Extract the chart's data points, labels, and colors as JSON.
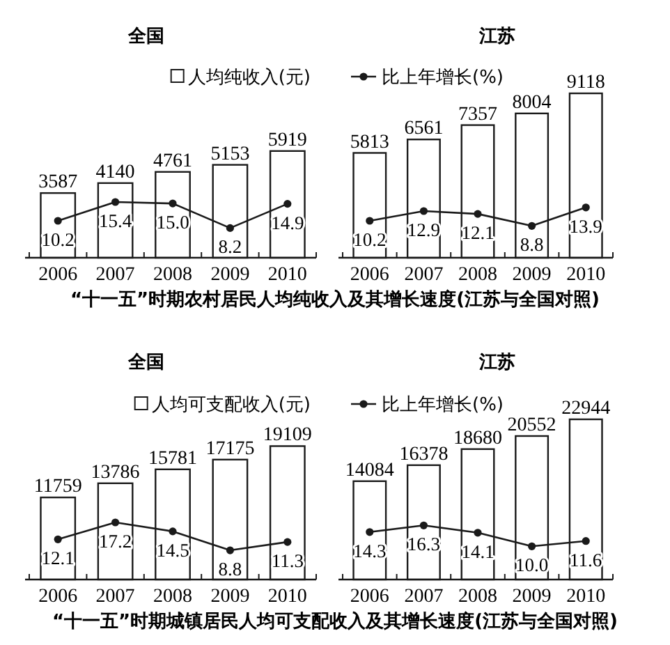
{
  "chart_data": [
    {
      "type": "bar",
      "title": "全国",
      "categories": [
        "2006",
        "2007",
        "2008",
        "2009",
        "2010"
      ],
      "series": [
        {
          "name": "人均纯收入(元)",
          "color": "#ffffff",
          "values": [
            3587,
            4140,
            4761,
            5153,
            5919
          ]
        },
        {
          "type": "line",
          "axis": "y2",
          "color": "#1a1a1a",
          "values": [
            10.2,
            15.4,
            15.0,
            8.2,
            14.9
          ],
          "value_labels": [
            "10.2",
            "15.4",
            "15.0",
            "8.2",
            "14.9"
          ]
        }
      ],
      "data_labels": true,
      "marker": "circle",
      "legend": "top right",
      "tick_labels": "x",
      "annotations": [
        "“十一五”时期农村居民人均纯收入及其增长速度(江苏与全国对照)"
      ]
    },
    {
      "type": "bar",
      "title": "江苏",
      "categories": [
        "2006",
        "2007",
        "2008",
        "2009",
        "2010"
      ],
      "series": [
        {
          "color": "#ffffff",
          "values": [
            5813,
            6561,
            7357,
            8004,
            9118
          ]
        },
        {
          "name": "比上年增长(%)",
          "type": "line",
          "axis": "y2",
          "color": "#1a1a1a",
          "values": [
            10.2,
            12.9,
            12.1,
            8.8,
            13.9
          ],
          "value_labels": [
            "10.2",
            "12.9",
            "12.1",
            "8.8",
            "13.9"
          ]
        }
      ],
      "data_labels": true,
      "marker": "circle",
      "legend": "top left",
      "tick_labels": "x"
    },
    {
      "type": "bar",
      "title": "全国",
      "categories": [
        "2006",
        "2007",
        "2008",
        "2009",
        "2010"
      ],
      "series": [
        {
          "name": "人均可支配收入(元)",
          "color": "#ffffff",
          "values": [
            11759,
            13786,
            15781,
            17175,
            19109
          ]
        },
        {
          "type": "line",
          "axis": "y2",
          "color": "#1a1a1a",
          "values": [
            12.1,
            17.2,
            14.5,
            8.8,
            11.3
          ],
          "value_labels": [
            "12.1",
            "17.2",
            "14.5",
            "8.8",
            "11.3"
          ]
        }
      ],
      "data_labels": true,
      "marker": "circle",
      "legend": "top right",
      "tick_labels": "x",
      "annotations": [
        "“十一五”时期城镇居民人均可支配收入及其增长速度(江苏与全国对照)"
      ]
    },
    {
      "type": "bar",
      "title": "江苏",
      "categories": [
        "2006",
        "2007",
        "2008",
        "2009",
        "2010"
      ],
      "series": [
        {
          "color": "#ffffff",
          "values": [
            14084,
            16378,
            18680,
            20552,
            22944
          ]
        },
        {
          "name": "比上年增长(%)",
          "type": "line",
          "axis": "y2",
          "color": "#1a1a1a",
          "values": [
            14.3,
            16.3,
            14.1,
            10.0,
            11.6
          ],
          "value_labels": [
            "14.3",
            "16.3",
            "14.1",
            "10.0",
            "11.6"
          ]
        }
      ],
      "data_labels": true,
      "marker": "circle",
      "legend": "top left",
      "tick_labels": "x"
    }
  ]
}
